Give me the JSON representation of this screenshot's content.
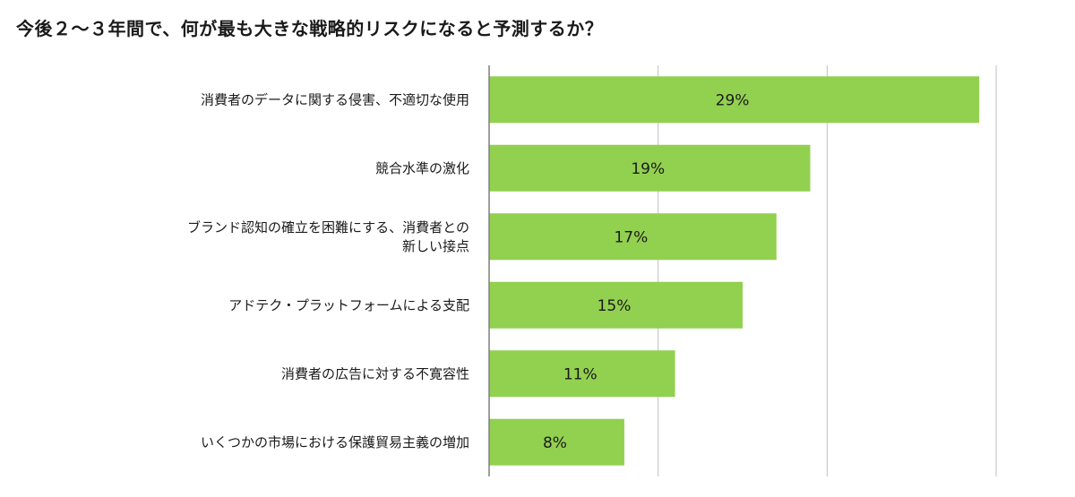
{
  "chart_data": {
    "type": "bar",
    "orientation": "horizontal",
    "title": "今後２～３年間で、何が最も大きな戦略的リスクになると予測するか？",
    "categories": [
      [
        "消費者のデータに関する侵害、不適切な使用"
      ],
      [
        "競合水準の激化"
      ],
      [
        "ブランド認知の確立を困難にする、消費者との",
        "新しい接点"
      ],
      [
        "アドテク・プラットフォームによる支配"
      ],
      [
        "消費者の広告に対する不寛容性"
      ],
      [
        "いくつかの市場における保護貿易主義の増加"
      ]
    ],
    "values": [
      29,
      19,
      17,
      15,
      11,
      8
    ],
    "value_labels": [
      "29%",
      "19%",
      "17%",
      "15%",
      "11%",
      "8%"
    ],
    "xlim": [
      0,
      30
    ],
    "x_gridlines": [
      10,
      20,
      30
    ],
    "grid": true,
    "bar_color": "#92d050",
    "grid_color": "#bfbfbf"
  }
}
